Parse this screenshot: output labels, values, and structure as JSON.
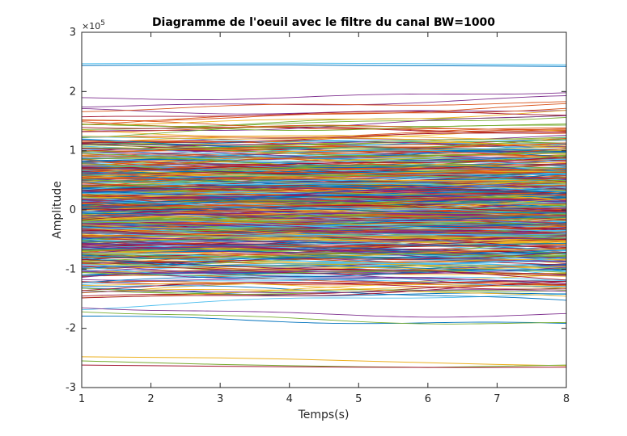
{
  "chart_data": {
    "type": "line",
    "title": "Diagramme de l'oeuil avec le filtre du canal BW=1000",
    "xlabel": "Temps(s)",
    "ylabel": "Amplitude",
    "xlim": [
      1,
      8
    ],
    "ylim": [
      -300000,
      300000
    ],
    "x_ticks": [
      1,
      2,
      3,
      4,
      5,
      6,
      7,
      8
    ],
    "y_ticks": [
      -3,
      -2,
      -1,
      0,
      1,
      2,
      3
    ],
    "y_tick_labels": [
      "-3",
      "-2",
      "-1",
      "0",
      "1",
      "2",
      "3"
    ],
    "y_exponent": "×10",
    "y_exponent_power": "5",
    "grid": false,
    "legend": "none",
    "x": [
      1,
      2,
      3,
      4,
      5,
      6,
      7,
      8
    ],
    "trace_count": 600,
    "trace_envelope": {
      "max": 247000,
      "min": -266000
    },
    "series_colors": [
      "#0072BD",
      "#D95319",
      "#EDB120",
      "#7E2F8E",
      "#77AC30",
      "#4DBEEE",
      "#A2142F"
    ],
    "series": [
      {
        "values": [
          247000,
          247500,
          248000,
          248000,
          247500,
          247000,
          246000,
          245000
        ]
      },
      {
        "values": [
          244000,
          244500,
          245000,
          245000,
          244000,
          243500,
          243000,
          242500
        ]
      },
      {
        "values": [
          -248000,
          -249000,
          -250000,
          -252000,
          -255000,
          -258000,
          -261000,
          -263000
        ]
      },
      {
        "values": [
          -255000,
          -258000,
          -261000,
          -263000,
          -265000,
          -266000,
          -264000,
          -262000
        ]
      },
      {
        "values": [
          -262000,
          -263000,
          -264000,
          -265000,
          -265500,
          -266000,
          -266000,
          -265500
        ]
      }
    ]
  }
}
